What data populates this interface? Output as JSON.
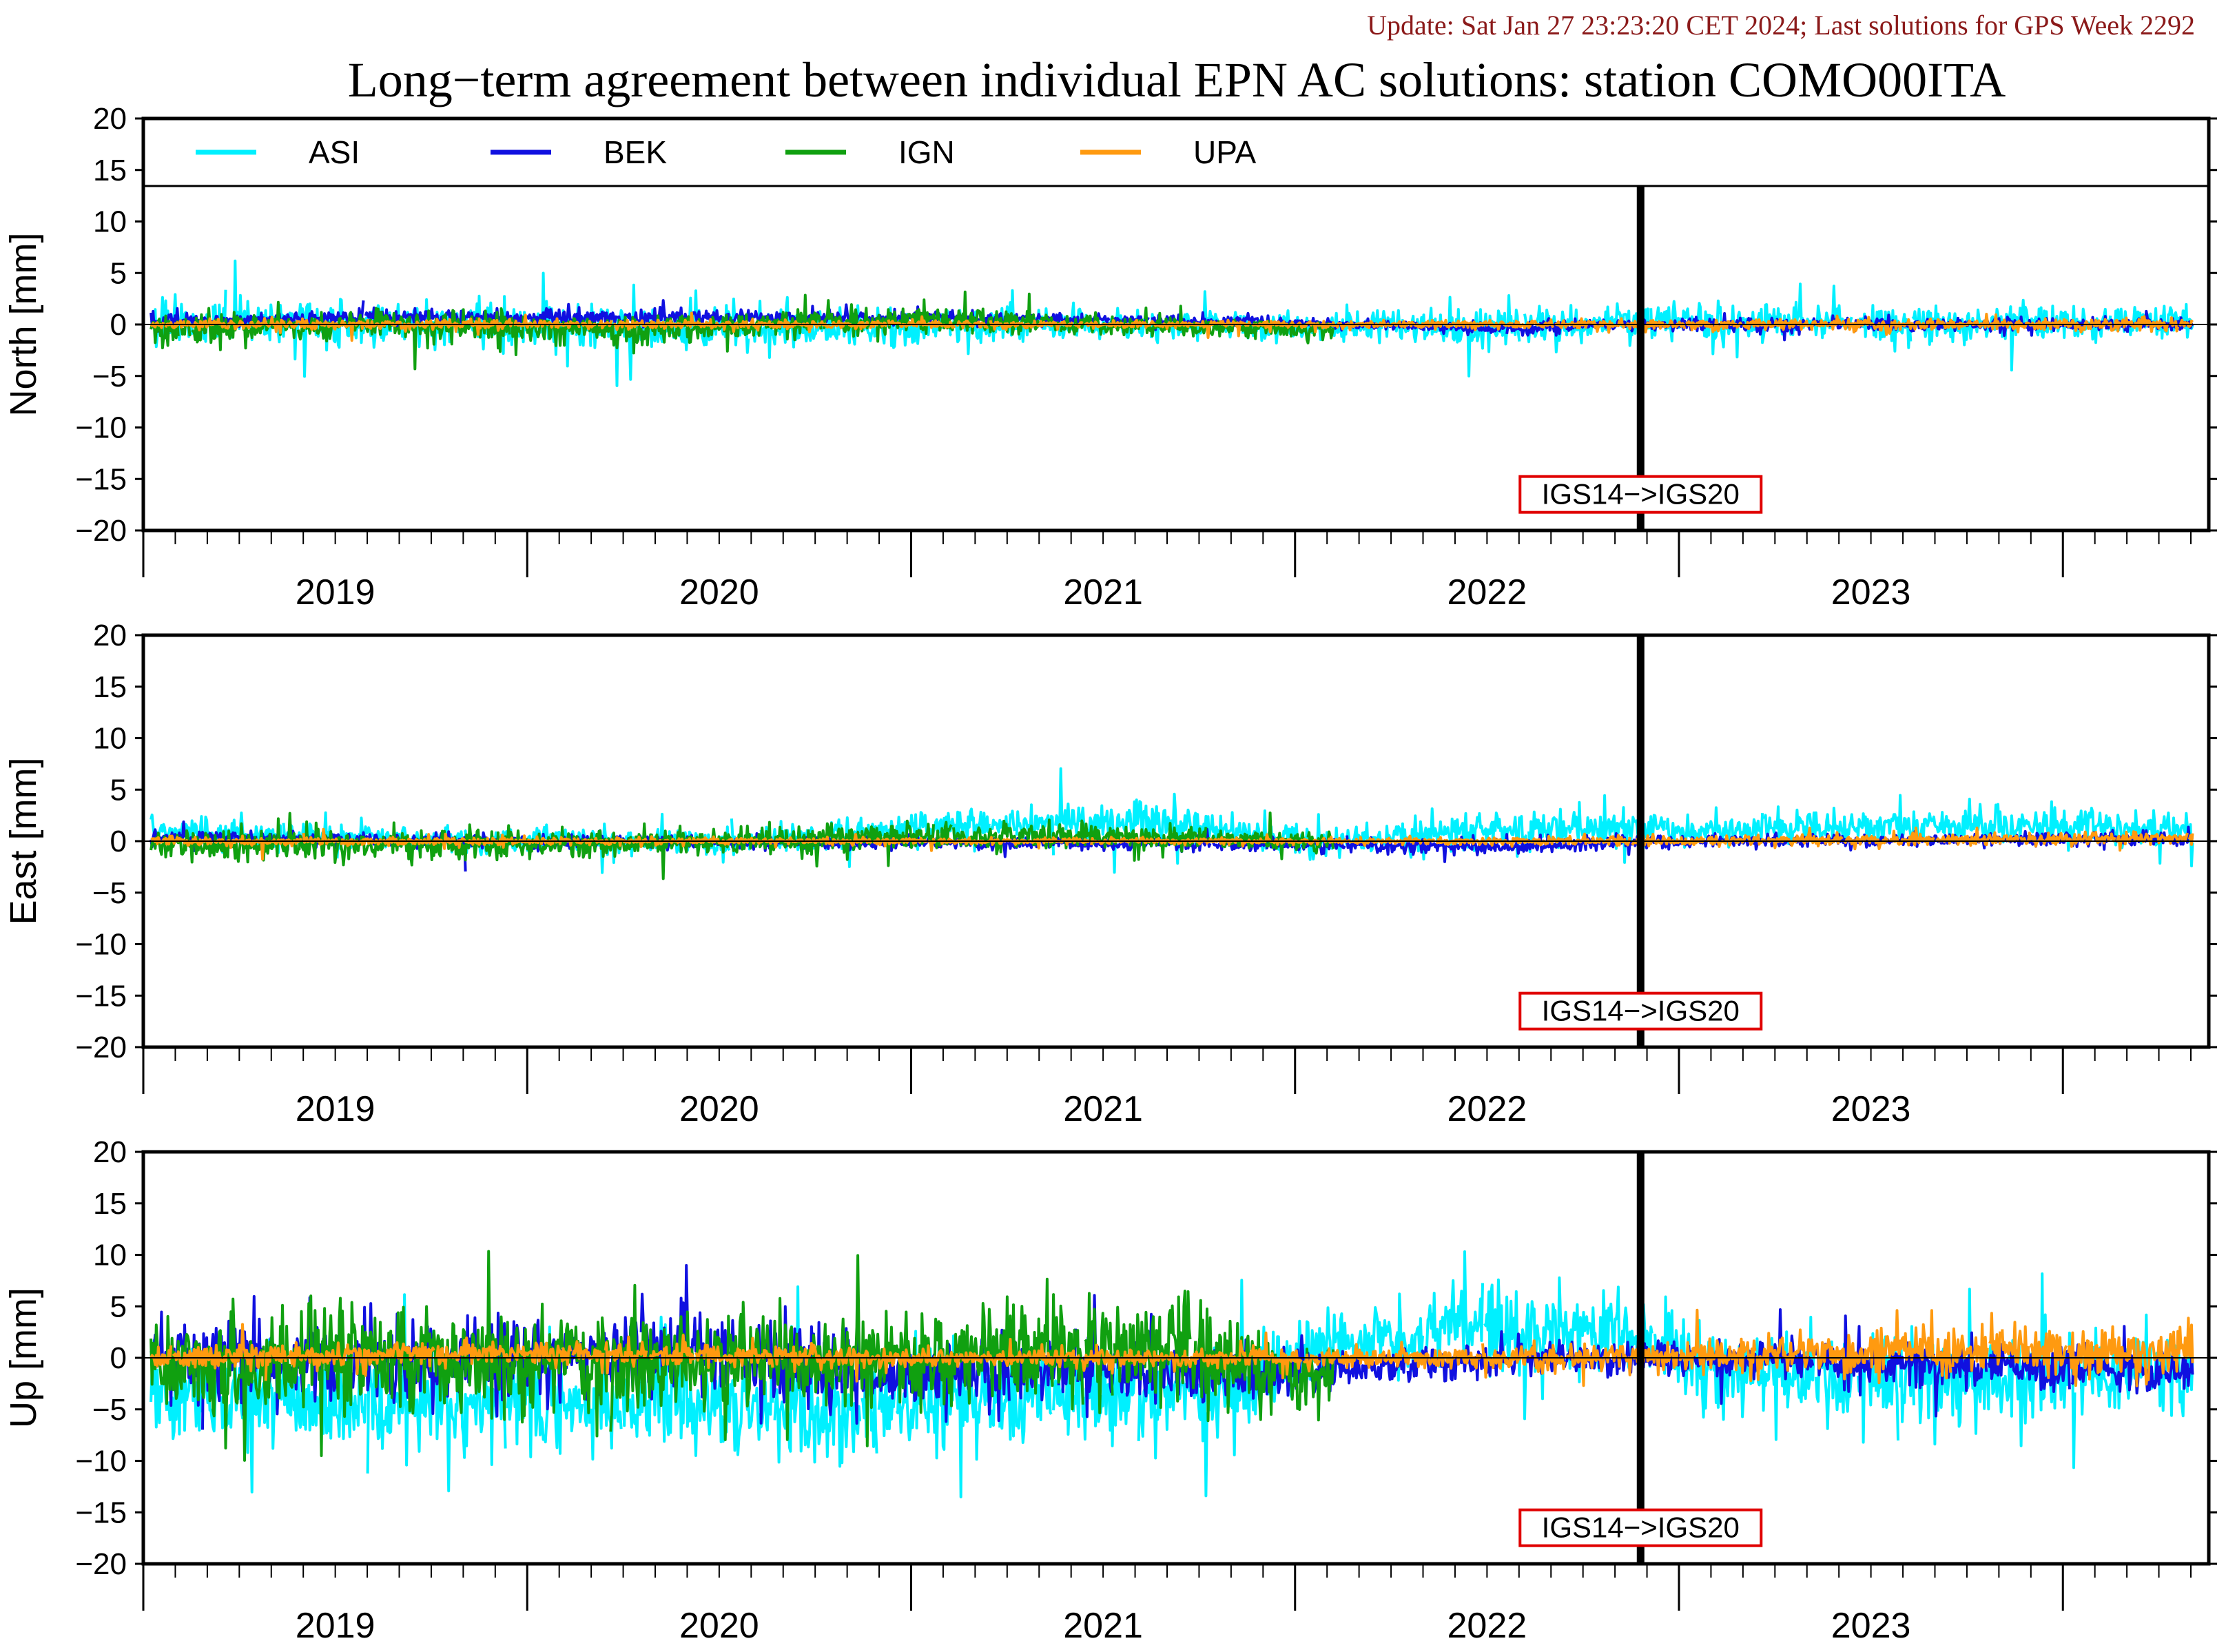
{
  "header": {
    "update": "Update: Sat Jan 27 23:23:20 CET 2024; Last solutions for GPS Week 2292",
    "title": "Long−term agreement between individual EPN AC solutions: station COMO00ITA"
  },
  "colors": {
    "ASI": "#00f0ff",
    "BEK": "#1010e0",
    "IGN": "#10a010",
    "UPA": "#ff9a10",
    "update_text": "#8b1a1a",
    "annotation_box": "#e00000"
  },
  "legend": {
    "placement": "top-inside-first-panel",
    "items": [
      {
        "name": "ASI",
        "color": "#00f0ff"
      },
      {
        "name": "BEK",
        "color": "#1010e0"
      },
      {
        "name": "IGN",
        "color": "#10a010"
      },
      {
        "name": "UPA",
        "color": "#ff9a10"
      }
    ]
  },
  "chart_data": [
    {
      "type": "line",
      "panel": "north",
      "ylabel": "North [mm]",
      "ylim": [
        -20,
        20
      ],
      "yticks": [
        "20",
        "15",
        "10",
        "5",
        "0",
        "−5",
        "−10",
        "−15",
        "−20"
      ],
      "xlim": [
        2018.5,
        2023.88
      ],
      "xticks": [
        "2019",
        "2020",
        "2021",
        "2022",
        "2023"
      ],
      "annotation": {
        "text": "IGS14−>IGS20",
        "x": 2022.4
      },
      "series": [
        {
          "name": "ASI",
          "spread": [
            [
              2018.52,
              0.2,
              1.4
            ],
            [
              2019.5,
              0.0,
              1.3
            ],
            [
              2020.2,
              -0.5,
              1.3
            ],
            [
              2021.0,
              0.0,
              1.0
            ],
            [
              2021.7,
              -0.2,
              0.9
            ],
            [
              2022.0,
              -0.4,
              1.2
            ],
            [
              2022.5,
              0.3,
              1.1
            ],
            [
              2023.2,
              0.1,
              1.1
            ],
            [
              2023.84,
              0.2,
              1.0
            ]
          ]
        },
        {
          "name": "BEK",
          "spread": [
            [
              2018.52,
              0.3,
              0.4
            ],
            [
              2019.2,
              0.8,
              0.5
            ],
            [
              2019.6,
              0.6,
              0.5
            ],
            [
              2020.5,
              0.7,
              0.4
            ],
            [
              2021.6,
              0.1,
              0.3
            ],
            [
              2022.0,
              -0.4,
              0.4
            ],
            [
              2022.4,
              0.0,
              0.4
            ],
            [
              2023.84,
              0.0,
              0.4
            ]
          ]
        },
        {
          "name": "IGN",
          "spread": [
            [
              2018.52,
              -0.6,
              0.9
            ],
            [
              2019.0,
              0.1,
              0.9
            ],
            [
              2019.8,
              -0.5,
              0.9
            ],
            [
              2020.5,
              0.5,
              0.8
            ],
            [
              2021.0,
              0.0,
              0.6
            ],
            [
              2021.6,
              -0.5,
              0.5
            ]
          ]
        },
        {
          "name": "UPA",
          "spread": [
            [
              2018.52,
              0.0,
              0.3
            ],
            [
              2020.5,
              0.0,
              0.25
            ],
            [
              2021.75,
              0.0,
              0.2
            ],
            [
              2022.4,
              0.0,
              0.3
            ],
            [
              2023.84,
              0.0,
              0.4
            ]
          ]
        }
      ]
    },
    {
      "type": "line",
      "panel": "east",
      "ylabel": "East [mm]",
      "ylim": [
        -20,
        20
      ],
      "yticks": [
        "20",
        "15",
        "10",
        "5",
        "0",
        "−5",
        "−10",
        "−15",
        "−20"
      ],
      "xlim": [
        2018.5,
        2023.88
      ],
      "xticks": [
        "2019",
        "2020",
        "2021",
        "2022",
        "2023"
      ],
      "annotation": {
        "text": "IGS14−>IGS20",
        "x": 2022.4
      },
      "series": [
        {
          "name": "ASI",
          "spread": [
            [
              2018.52,
              1.0,
              0.9
            ],
            [
              2019.0,
              0.3,
              0.8
            ],
            [
              2020.0,
              -0.2,
              0.8
            ],
            [
              2020.7,
              1.8,
              1.0
            ],
            [
              2021.1,
              1.8,
              1.2
            ],
            [
              2021.6,
              -0.3,
              0.8
            ],
            [
              2022.0,
              1.3,
              1.2
            ],
            [
              2022.5,
              1.0,
              1.0
            ],
            [
              2023.2,
              1.7,
              1.2
            ],
            [
              2023.84,
              1.2,
              1.0
            ]
          ]
        },
        {
          "name": "BEK",
          "spread": [
            [
              2018.52,
              0.3,
              0.4
            ],
            [
              2019.5,
              0.0,
              0.4
            ],
            [
              2020.5,
              -0.2,
              0.4
            ],
            [
              2021.5,
              -0.3,
              0.4
            ],
            [
              2022.0,
              -0.6,
              0.5
            ],
            [
              2022.4,
              0.0,
              0.4
            ],
            [
              2023.84,
              0.2,
              0.4
            ]
          ]
        },
        {
          "name": "IGN",
          "spread": [
            [
              2018.52,
              -0.4,
              0.9
            ],
            [
              2019.0,
              -0.3,
              1.0
            ],
            [
              2019.8,
              -0.2,
              0.8
            ],
            [
              2020.5,
              0.6,
              0.9
            ],
            [
              2021.0,
              0.5,
              0.8
            ],
            [
              2021.6,
              0.0,
              0.5
            ]
          ]
        },
        {
          "name": "UPA",
          "spread": [
            [
              2018.52,
              0.0,
              0.3
            ],
            [
              2020.5,
              0.0,
              0.2
            ],
            [
              2021.75,
              0.0,
              0.2
            ],
            [
              2022.4,
              0.0,
              0.3
            ],
            [
              2023.84,
              0.3,
              0.4
            ]
          ]
        }
      ]
    },
    {
      "type": "line",
      "panel": "up",
      "ylabel": "Up [mm]",
      "ylim": [
        -20,
        20
      ],
      "yticks": [
        "20",
        "15",
        "10",
        "5",
        "0",
        "−5",
        "−10",
        "−15",
        "−20"
      ],
      "xlim": [
        2018.5,
        2023.88
      ],
      "xticks": [
        "2019",
        "2020",
        "2021",
        "2022",
        "2023"
      ],
      "annotation": {
        "text": "IGS14−>IGS20",
        "x": 2022.4
      },
      "series": [
        {
          "name": "ASI",
          "spread": [
            [
              2018.52,
              -3.0,
              3.0
            ],
            [
              2019.0,
              -4.5,
              3.0
            ],
            [
              2019.8,
              -4.0,
              3.0
            ],
            [
              2020.3,
              -5.5,
              3.0
            ],
            [
              2020.8,
              -3.5,
              3.0
            ],
            [
              2021.3,
              -4.0,
              3.0
            ],
            [
              2021.6,
              1.5,
              2.0
            ],
            [
              2022.0,
              3.0,
              3.0
            ],
            [
              2022.4,
              2.0,
              2.5
            ],
            [
              2022.6,
              -1.5,
              2.5
            ],
            [
              2023.2,
              -2.0,
              3.0
            ],
            [
              2023.84,
              -1.5,
              2.5
            ]
          ]
        },
        {
          "name": "BEK",
          "spread": [
            [
              2018.52,
              0.0,
              2.5
            ],
            [
              2019.3,
              -0.5,
              2.5
            ],
            [
              2019.9,
              1.0,
              2.5
            ],
            [
              2020.3,
              -1.5,
              2.5
            ],
            [
              2020.8,
              -1.0,
              2.0
            ],
            [
              2021.3,
              -1.5,
              2.0
            ],
            [
              2021.7,
              -1.0,
              1.0
            ],
            [
              2022.0,
              0.0,
              1.3
            ],
            [
              2022.4,
              0.0,
              1.0
            ],
            [
              2023.2,
              -0.5,
              1.3
            ],
            [
              2023.84,
              -1.5,
              1.5
            ]
          ]
        },
        {
          "name": "IGN",
          "spread": [
            [
              2018.52,
              -1.0,
              3.0
            ],
            [
              2019.0,
              0.0,
              3.5
            ],
            [
              2019.8,
              -1.0,
              3.0
            ],
            [
              2020.3,
              0.0,
              3.0
            ],
            [
              2020.8,
              0.5,
              3.0
            ],
            [
              2021.2,
              1.0,
              3.5
            ],
            [
              2021.6,
              -2.0,
              1.5
            ]
          ]
        },
        {
          "name": "UPA",
          "spread": [
            [
              2018.52,
              0.0,
              0.7
            ],
            [
              2019.5,
              0.5,
              0.7
            ],
            [
              2020.5,
              0.0,
              0.6
            ],
            [
              2021.75,
              0.0,
              0.6
            ],
            [
              2022.4,
              0.0,
              0.8
            ],
            [
              2023.3,
              1.0,
              1.5
            ],
            [
              2023.84,
              0.5,
              1.5
            ]
          ]
        }
      ]
    }
  ]
}
